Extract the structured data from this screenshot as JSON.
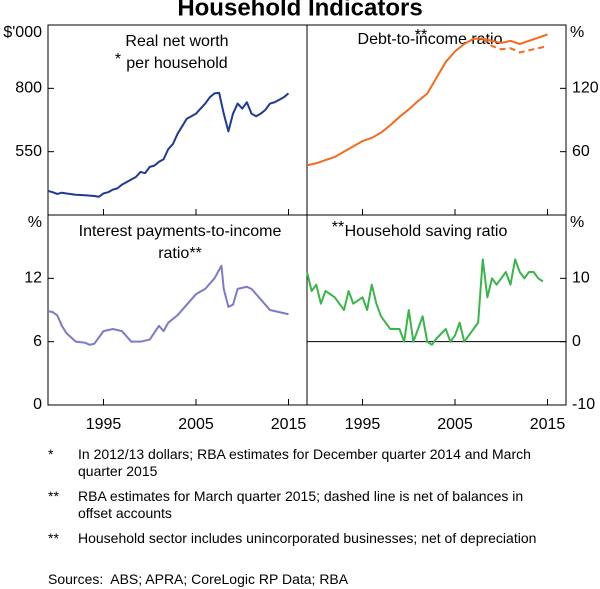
{
  "title": "Household Indicators",
  "chart_data": [
    {
      "type": "line",
      "title": [
        "Real net worth",
        "per household"
      ],
      "annotation": "*",
      "unit": "$'000",
      "xlim": [
        1989,
        2017
      ],
      "xticks": [
        1995,
        2005,
        2015
      ],
      "ylim": [
        300,
        1050
      ],
      "yticks": [
        550,
        800
      ],
      "x": [
        1989,
        1989.5,
        1990,
        1990.5,
        1991,
        1992,
        1993,
        1994,
        1994.5,
        1995,
        1995.5,
        1996,
        1996.5,
        1997,
        1997.5,
        1998,
        1998.5,
        1999,
        1999.5,
        2000,
        2000.5,
        2001,
        2001.5,
        2002,
        2002.5,
        2003,
        2003.5,
        2004,
        2004.5,
        2005,
        2005.5,
        2006,
        2006.5,
        2007,
        2007.5,
        2008,
        2008.5,
        2009,
        2009.5,
        2010,
        2010.5,
        2011,
        2011.5,
        2012,
        2012.5,
        2013,
        2013.5,
        2014,
        2014.5,
        2015
      ],
      "series": [
        {
          "color": "#1f3a93",
          "dashed": false,
          "values": [
            395,
            390,
            383,
            388,
            385,
            380,
            378,
            375,
            372,
            385,
            390,
            400,
            405,
            420,
            430,
            440,
            450,
            470,
            465,
            490,
            495,
            510,
            520,
            560,
            580,
            620,
            650,
            680,
            690,
            700,
            720,
            740,
            765,
            780,
            782,
            700,
            630,
            700,
            740,
            720,
            745,
            700,
            690,
            700,
            715,
            740,
            745,
            755,
            765,
            780
          ]
        }
      ]
    },
    {
      "type": "line",
      "title": [
        "Debt-to-income ratio"
      ],
      "annotation": "**",
      "unit": "%",
      "xlim": [
        1989,
        2017
      ],
      "xticks": [
        1995,
        2005,
        2015
      ],
      "ylim": [
        0,
        180
      ],
      "yticks": [
        60,
        120
      ],
      "x": [
        1989,
        1990,
        1991,
        1992,
        1993,
        1994,
        1995,
        1996,
        1997,
        1998,
        1999,
        2000,
        2001,
        2002,
        2003,
        2004,
        2005,
        2006,
        2007,
        2008,
        2009,
        2010,
        2011,
        2012,
        2013,
        2014,
        2015
      ],
      "series": [
        {
          "color": "#f26b21",
          "dashed": false,
          "values": [
            47,
            49,
            52,
            55,
            60,
            65,
            70,
            73,
            78,
            85,
            93,
            100,
            108,
            115,
            130,
            145,
            155,
            162,
            167,
            167,
            165,
            163,
            165,
            162,
            165,
            168,
            171
          ]
        },
        {
          "color": "#f26b21",
          "dashed": true,
          "values": [
            null,
            null,
            null,
            null,
            null,
            null,
            null,
            null,
            null,
            null,
            null,
            null,
            null,
            null,
            null,
            null,
            null,
            null,
            null,
            167,
            160,
            157,
            158,
            154,
            156,
            158,
            160
          ]
        }
      ]
    },
    {
      "type": "line",
      "title": [
        "Interest payments-to-income",
        "ratio**"
      ],
      "unit": "%",
      "xlim": [
        1989,
        2017
      ],
      "xticks": [
        1995,
        2005,
        2015
      ],
      "ylim": [
        0,
        18
      ],
      "yticks": [
        0,
        6,
        12
      ],
      "x": [
        1989,
        1989.5,
        1990,
        1990.5,
        1991,
        1992,
        1993,
        1993.5,
        1994,
        1995,
        1996,
        1997,
        1998,
        1999,
        2000,
        2001,
        2001.5,
        2002,
        2003,
        2004,
        2005,
        2006,
        2007,
        2007.75,
        2008,
        2008.5,
        2009,
        2009.5,
        2010.5,
        2011,
        2012,
        2013,
        2014,
        2015
      ],
      "series": [
        {
          "color": "#7b7bc8",
          "dashed": false,
          "values": [
            8.9,
            8.8,
            8.5,
            7.5,
            6.8,
            6,
            5.9,
            5.7,
            5.8,
            7,
            7.2,
            7,
            6,
            6,
            6.2,
            7.5,
            7,
            7.8,
            8.5,
            9.5,
            10.5,
            11,
            12,
            13.2,
            11,
            9.3,
            9.5,
            11,
            11.2,
            11,
            10,
            9,
            8.8,
            8.6
          ]
        }
      ]
    },
    {
      "type": "line",
      "title": [
        "Household saving ratio"
      ],
      "annotation": "**",
      "unit": "%",
      "xlim": [
        1989,
        2017
      ],
      "xticks": [
        1995,
        2005,
        2015
      ],
      "ylim": [
        -10,
        20
      ],
      "yticks": [
        -10,
        0,
        10
      ],
      "x": [
        1989,
        1989.5,
        1990,
        1990.5,
        1991,
        1992,
        1993,
        1993.5,
        1994,
        1995,
        1995.5,
        1996,
        1996.5,
        1997,
        1998,
        1999,
        1999.5,
        2000,
        2000.5,
        2001,
        2001.5,
        2002,
        2002.5,
        2003,
        2004,
        2004.5,
        2005,
        2005.5,
        2006,
        2007,
        2007.5,
        2008,
        2008.5,
        2009,
        2009.5,
        2010,
        2010.5,
        2011,
        2011.5,
        2012,
        2012.5,
        2013,
        2013.5,
        2014,
        2014.5
      ],
      "series": [
        {
          "color": "#3ab54a",
          "dashed": false,
          "values": [
            11,
            8,
            9,
            6,
            8,
            7,
            5,
            8,
            6,
            7,
            5,
            9,
            6,
            4,
            2,
            2,
            0,
            5,
            0,
            2,
            4,
            0,
            -0.5,
            0.5,
            2,
            0,
            1,
            3,
            0,
            2,
            3,
            13,
            7,
            10,
            9,
            10,
            11,
            9,
            13,
            11,
            10,
            11,
            11,
            10,
            9.5
          ]
        }
      ]
    }
  ],
  "footnotes": [
    {
      "marker": "*",
      "text": "In 2012/13 dollars; RBA estimates for December quarter 2014 and March quarter 2015"
    },
    {
      "marker": "**",
      "text": "RBA estimates for March quarter 2015; dashed line is net of balances in offset accounts"
    },
    {
      "marker": "**",
      "text": "Household sector includes unincorporated businesses; net of depreciation"
    }
  ],
  "sources": "Sources:  ABS; APRA; CoreLogic RP Data; RBA"
}
